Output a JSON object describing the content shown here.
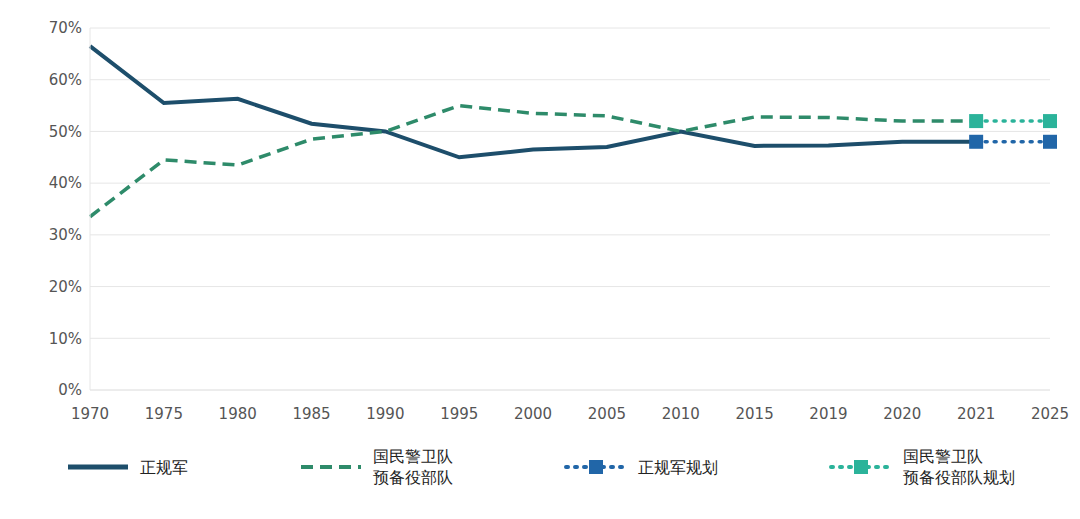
{
  "chart_data": {
    "type": "line",
    "categories": [
      "1970",
      "1975",
      "1980",
      "1985",
      "1990",
      "1995",
      "2000",
      "2005",
      "2010",
      "2015",
      "2019",
      "2020",
      "2021",
      "2025"
    ],
    "series": [
      {
        "name": "正规军",
        "color": "#1d4e6b",
        "line_style": "solid",
        "values": [
          66.5,
          55.5,
          56.3,
          51.5,
          50,
          45,
          46.5,
          47,
          50,
          47.2,
          47.3,
          48,
          48,
          null
        ]
      },
      {
        "name": "国民警卫队\n预备役部队",
        "color": "#2e8b6a",
        "line_style": "dashed",
        "values": [
          33.5,
          44.5,
          43.5,
          48.5,
          50,
          55,
          53.5,
          53,
          50,
          52.8,
          52.7,
          52,
          52,
          null
        ]
      },
      {
        "name": "正规军规划",
        "color": "#2166a8",
        "line_style": "dotted",
        "marker": "square",
        "values": [
          null,
          null,
          null,
          null,
          null,
          null,
          null,
          null,
          null,
          null,
          null,
          null,
          48,
          48
        ]
      },
      {
        "name": "国民警卫队\n预备役部队规划",
        "color": "#2bb39a",
        "line_style": "dotted",
        "marker": "square",
        "values": [
          null,
          null,
          null,
          null,
          null,
          null,
          null,
          null,
          null,
          null,
          null,
          null,
          52,
          52
        ]
      }
    ],
    "ylim": [
      0,
      70
    ],
    "yticks": [
      {
        "value": 0,
        "label": "0%"
      },
      {
        "value": 10,
        "label": "10%"
      },
      {
        "value": 20,
        "label": "20%"
      },
      {
        "value": 30,
        "label": "30%"
      },
      {
        "value": 40,
        "label": "40%"
      },
      {
        "value": 50,
        "label": "50%"
      },
      {
        "value": 60,
        "label": "60%"
      },
      {
        "value": 70,
        "label": "70%"
      }
    ],
    "grid": true
  }
}
